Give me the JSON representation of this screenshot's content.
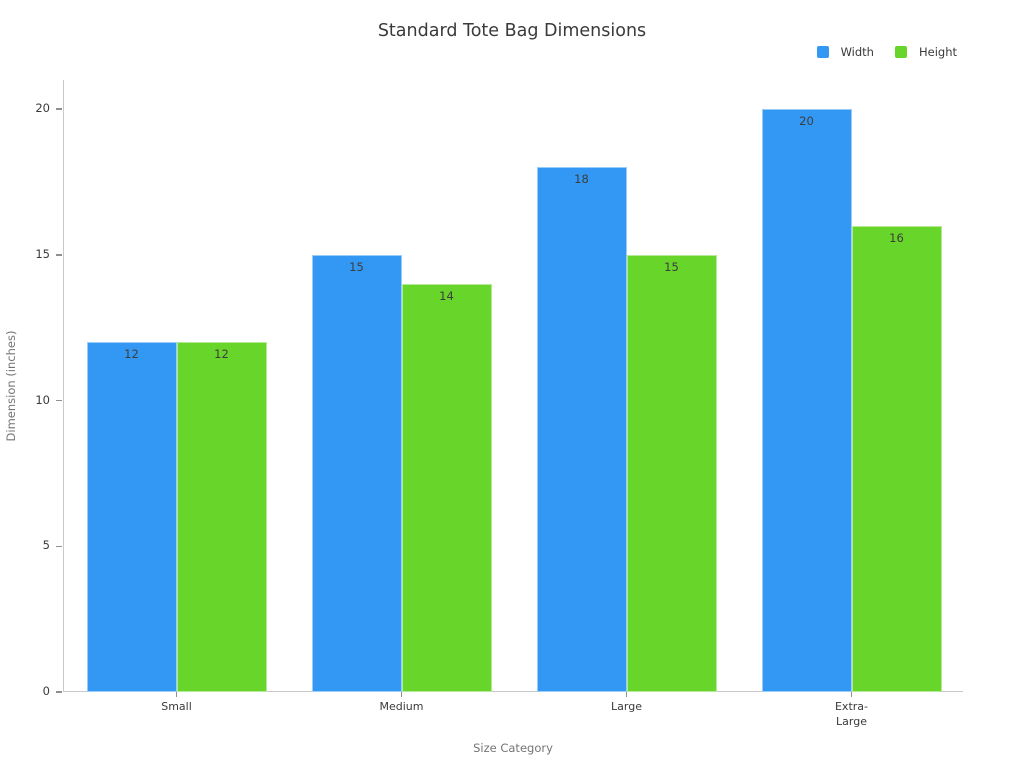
{
  "chart_data": {
    "type": "bar",
    "title": "Standard Tote Bag Dimensions",
    "xlabel": "Size Category",
    "ylabel": "Dimension (inches)",
    "categories": [
      "Small",
      "Medium",
      "Large",
      "Extra-Large"
    ],
    "tick_labels": [
      "Small",
      "Medium",
      "Large",
      "Extra-\nLarge"
    ],
    "series": [
      {
        "name": "Width",
        "color": "#3398f3",
        "values": [
          12,
          15,
          18,
          20
        ]
      },
      {
        "name": "Height",
        "color": "#68d52b",
        "values": [
          12,
          14,
          15,
          16
        ]
      }
    ],
    "ylim": [
      0,
      21
    ],
    "yticks": [
      0,
      5,
      10,
      15,
      20
    ],
    "grid": false,
    "legend_position": "top-right",
    "bar_labels": true
  },
  "colors": {
    "background": "#ffffff",
    "spine": "#c9c9c9",
    "tick_mark": "#8f8f8f",
    "tick_label": "#3a3a3a",
    "axis_title": "#757575",
    "title": "#3a3a3a",
    "bar_value_label": "#3d3d3d",
    "bar_edge": "rgba(255,255,255,0.5)"
  }
}
